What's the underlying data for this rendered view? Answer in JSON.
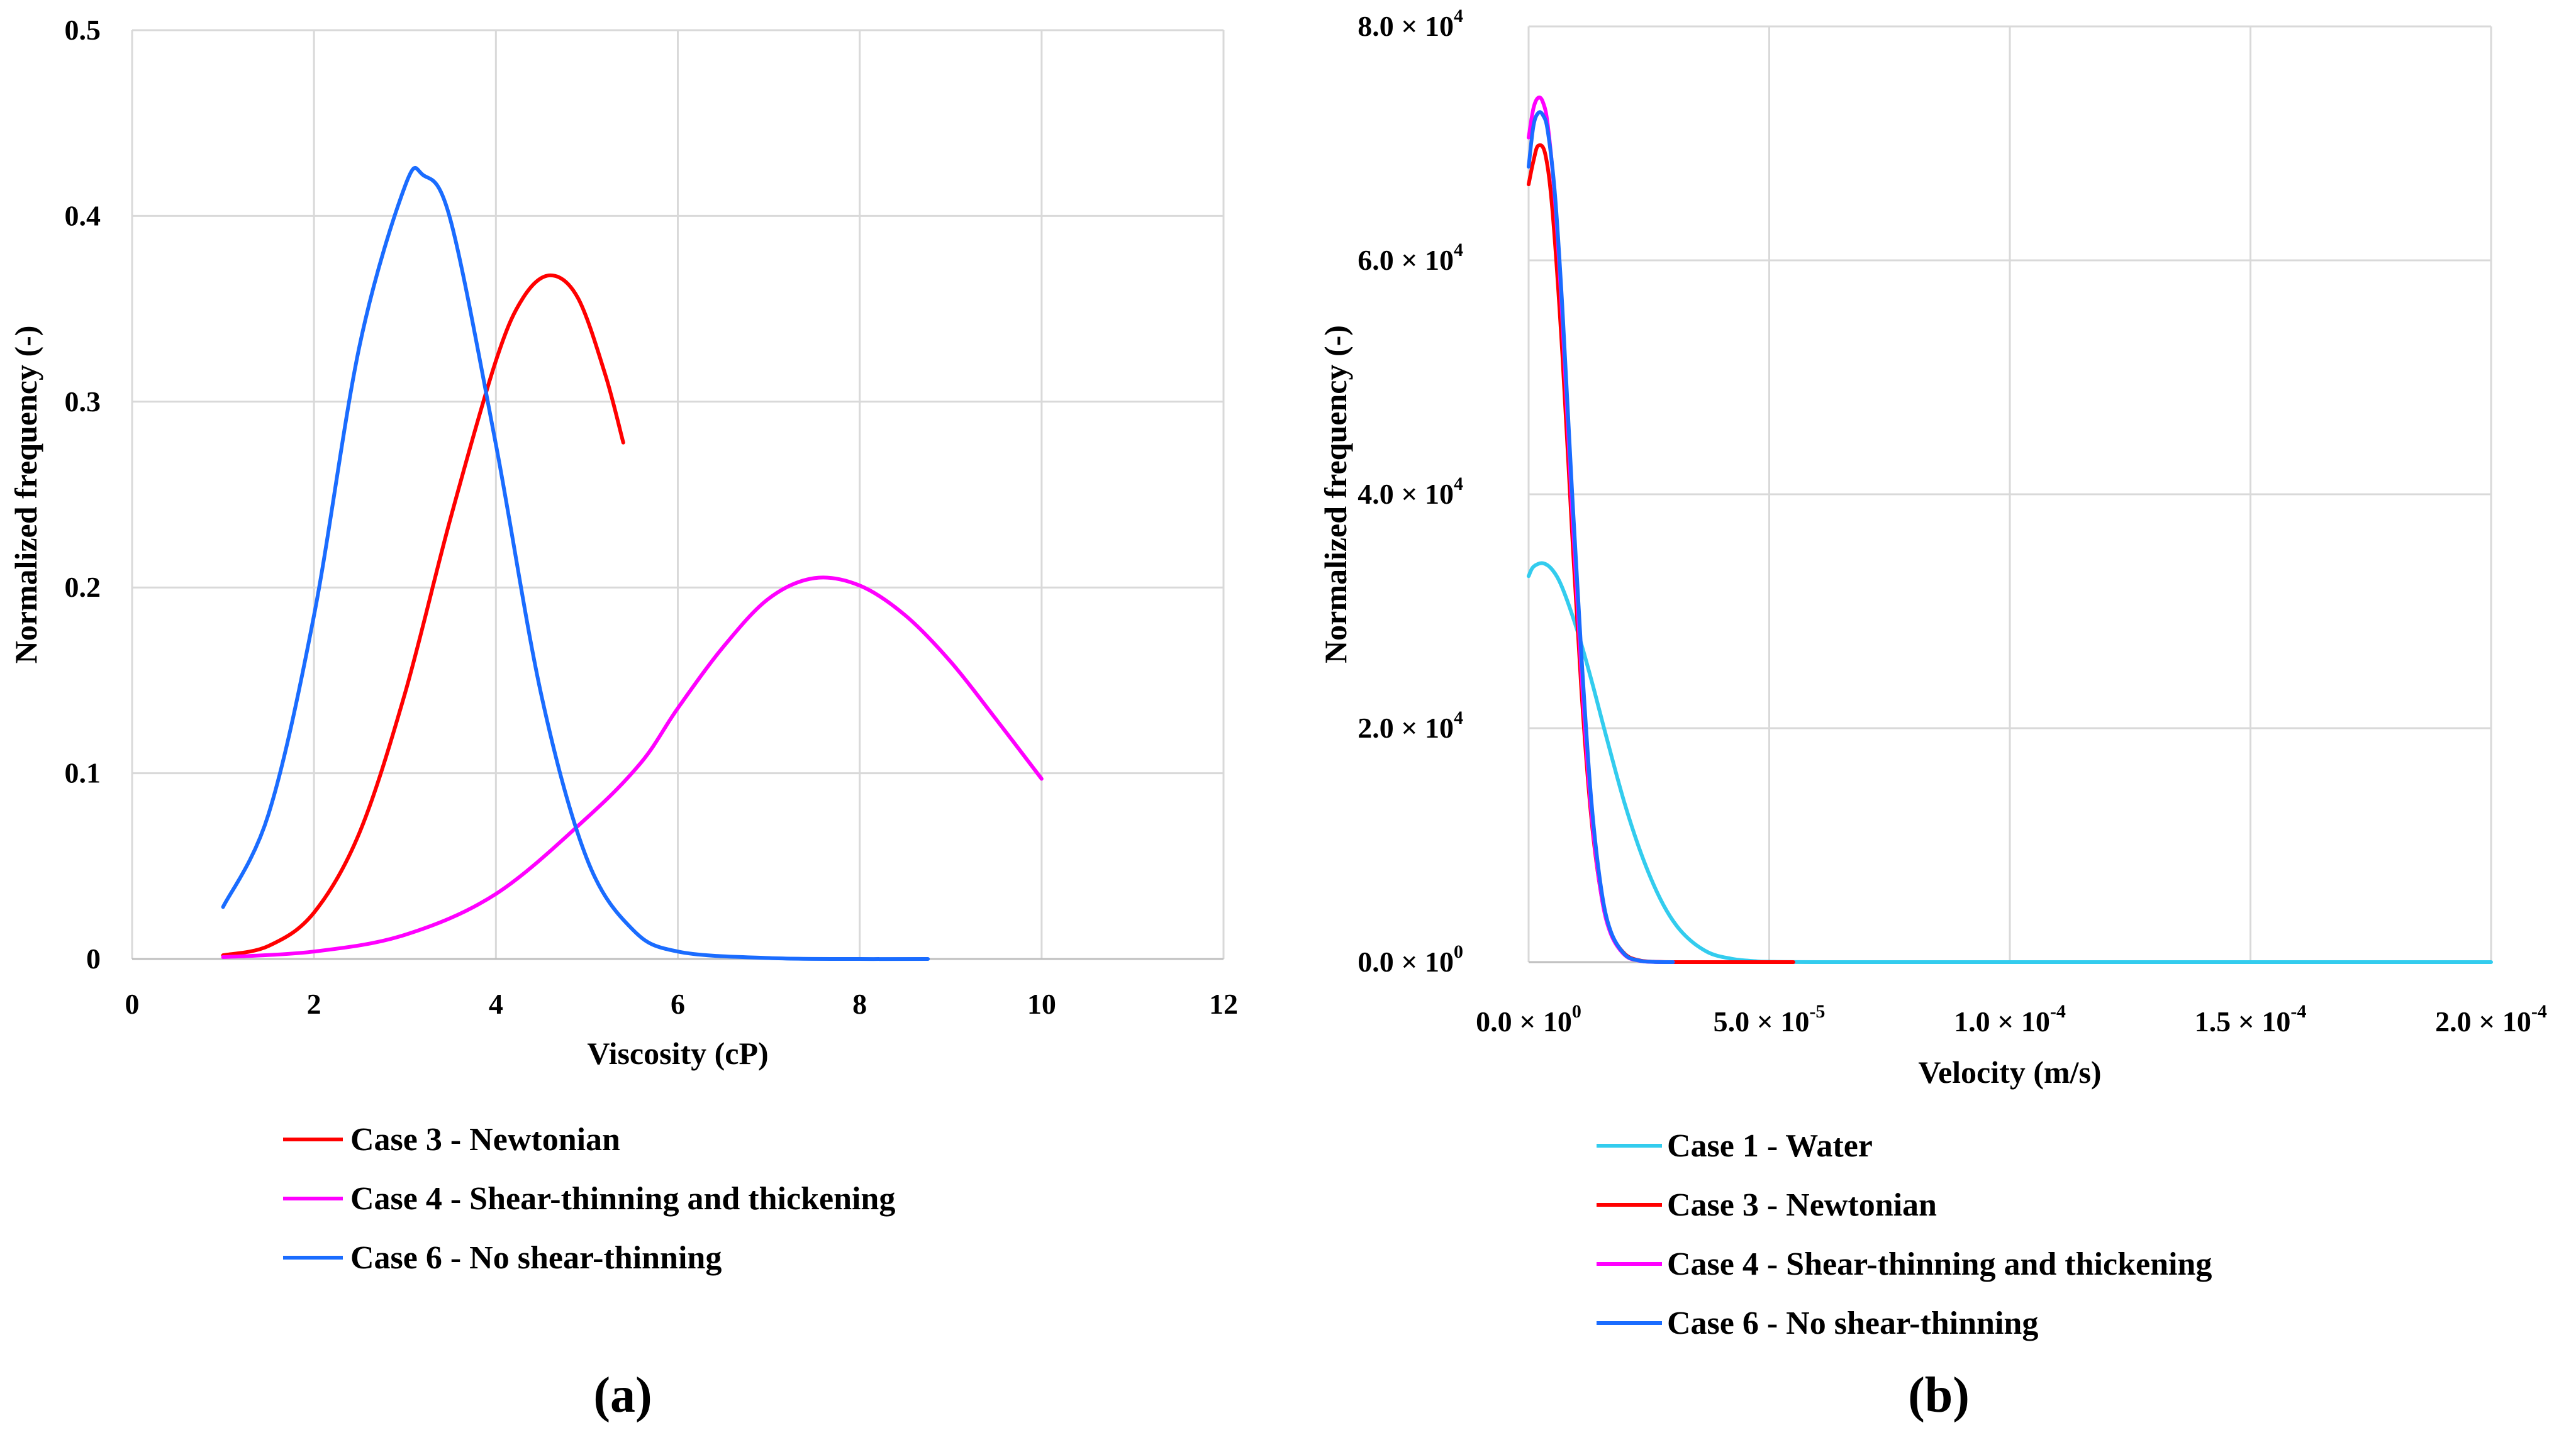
{
  "chart_data": [
    {
      "type": "line",
      "panel_label": "(a)",
      "xlabel": "Viscosity (cP)",
      "ylabel": "Normalized frequency (-)",
      "xlim": [
        0,
        12
      ],
      "ylim": [
        0,
        0.5
      ],
      "x_ticks": [
        {
          "value": 0,
          "label": "0"
        },
        {
          "value": 2,
          "label": "2"
        },
        {
          "value": 4,
          "label": "4"
        },
        {
          "value": 6,
          "label": "6"
        },
        {
          "value": 8,
          "label": "8"
        },
        {
          "value": 10,
          "label": "10"
        },
        {
          "value": 12,
          "label": "12"
        }
      ],
      "y_ticks": [
        {
          "value": 0,
          "label": "0"
        },
        {
          "value": 0.1,
          "label": "0.1"
        },
        {
          "value": 0.2,
          "label": "0.2"
        },
        {
          "value": 0.3,
          "label": "0.3"
        },
        {
          "value": 0.4,
          "label": "0.4"
        },
        {
          "value": 0.5,
          "label": "0.5"
        }
      ],
      "grid": true,
      "legend_position": "bottom",
      "series": [
        {
          "name": "Case 3 - Newtonian",
          "color": "#ff0000",
          "x": [
            1.0,
            1.5,
            2.0,
            2.5,
            3.0,
            3.5,
            4.0,
            4.3,
            4.6,
            4.9,
            5.2,
            5.4
          ],
          "y": [
            0.002,
            0.007,
            0.025,
            0.068,
            0.143,
            0.237,
            0.322,
            0.356,
            0.368,
            0.356,
            0.315,
            0.278
          ]
        },
        {
          "name": "Case 4 - Shear-thinning and thickening",
          "color": "#ff00ff",
          "x": [
            1.0,
            2.0,
            3.0,
            4.0,
            5.0,
            5.6,
            6.0,
            6.5,
            7.0,
            7.5,
            8.0,
            8.5,
            9.0,
            9.5,
            10.0
          ],
          "y": [
            0.001,
            0.004,
            0.013,
            0.035,
            0.076,
            0.106,
            0.135,
            0.168,
            0.194,
            0.205,
            0.201,
            0.185,
            0.16,
            0.129,
            0.097
          ]
        },
        {
          "name": "Case 6 - No shear-thinning",
          "color": "#1a6cff",
          "x": [
            1.0,
            1.5,
            2.0,
            2.5,
            3.0,
            3.2,
            3.5,
            4.0,
            4.5,
            5.0,
            5.5,
            6.0,
            7.0,
            8.0,
            8.75
          ],
          "y": [
            0.028,
            0.078,
            0.185,
            0.33,
            0.416,
            0.422,
            0.398,
            0.277,
            0.142,
            0.054,
            0.016,
            0.004,
            0.0005,
            0.0,
            0.0
          ]
        }
      ]
    },
    {
      "type": "line",
      "panel_label": "(b)",
      "xlabel": "Velocity (m/s)",
      "ylabel": "Normalized frequency (-)",
      "xlim": [
        0,
        0.0002
      ],
      "ylim": [
        0,
        80000
      ],
      "x_ticks": [
        {
          "value": 0,
          "mant": "0.0",
          "exp": "0"
        },
        {
          "value": 5e-05,
          "mant": "5.0",
          "exp": "-5"
        },
        {
          "value": 0.0001,
          "mant": "1.0",
          "exp": "-4"
        },
        {
          "value": 0.00015,
          "mant": "1.5",
          "exp": "-4"
        },
        {
          "value": 0.0002,
          "mant": "2.0",
          "exp": "-4"
        }
      ],
      "y_ticks": [
        {
          "value": 0,
          "mant": "0.0",
          "exp": "0"
        },
        {
          "value": 20000,
          "mant": "2.0",
          "exp": "4"
        },
        {
          "value": 40000,
          "mant": "4.0",
          "exp": "4"
        },
        {
          "value": 60000,
          "mant": "6.0",
          "exp": "4"
        },
        {
          "value": 80000,
          "mant": "8.0",
          "exp": "4"
        }
      ],
      "grid": true,
      "legend_position": "bottom",
      "series": [
        {
          "name": "Case 1 - Water",
          "color": "#33ccee",
          "x": [
            0,
            1e-06,
            3e-06,
            5e-06,
            7e-06,
            1e-05,
            1.3e-05,
            1.6e-05,
            2e-05,
            2.4e-05,
            2.8e-05,
            3.2e-05,
            3.7e-05,
            4.2e-05,
            4.7e-05,
            5e-05,
            6e-05,
            0.0001,
            0.00015,
            0.0002
          ],
          "y": [
            33000,
            33800,
            34100,
            33500,
            32000,
            28500,
            24200,
            19500,
            13500,
            8600,
            4900,
            2500,
            900,
            300,
            80,
            30,
            0,
            0,
            0,
            0
          ]
        },
        {
          "name": "Case 3 - Newtonian",
          "color": "#ff0000",
          "x": [
            0,
            1e-06,
            2e-06,
            3.5e-06,
            5e-06,
            7e-06,
            9e-06,
            1.1e-05,
            1.3e-05,
            1.5e-05,
            1.7e-05,
            2e-05,
            2.3e-05,
            2.6e-05,
            3e-05,
            4e-05,
            5e-05,
            5.5e-05
          ],
          "y": [
            66500,
            68500,
            69800,
            69000,
            64000,
            52000,
            37000,
            23000,
            12500,
            6000,
            2600,
            700,
            150,
            30,
            0,
            0,
            0,
            0
          ]
        },
        {
          "name": "Case 4 - Shear-thinning and thickening",
          "color": "#ff00ff",
          "x": [
            0,
            1e-06,
            2e-06,
            3e-06,
            4e-06,
            5.5e-06,
            7e-06,
            9e-06,
            1.1e-05,
            1.3e-05,
            1.5e-05,
            1.7e-05,
            2e-05,
            2.3e-05,
            2.6e-05,
            3e-05
          ],
          "y": [
            70500,
            73000,
            73900,
            73500,
            71500,
            65000,
            55000,
            39000,
            24500,
            13000,
            6000,
            2500,
            600,
            120,
            20,
            0
          ]
        },
        {
          "name": "Case 6 - No shear-thinning",
          "color": "#1a6cff",
          "x": [
            0,
            1e-06,
            2e-06,
            3e-06,
            4e-06,
            5.5e-06,
            7e-06,
            9e-06,
            1.1e-05,
            1.3e-05,
            1.5e-05,
            1.7e-05,
            2e-05,
            2.3e-05,
            2.6e-05,
            3e-05
          ],
          "y": [
            68000,
            71500,
            72600,
            72400,
            71000,
            65500,
            56000,
            40500,
            26000,
            14000,
            6500,
            2700,
            650,
            130,
            20,
            0
          ]
        }
      ]
    }
  ]
}
